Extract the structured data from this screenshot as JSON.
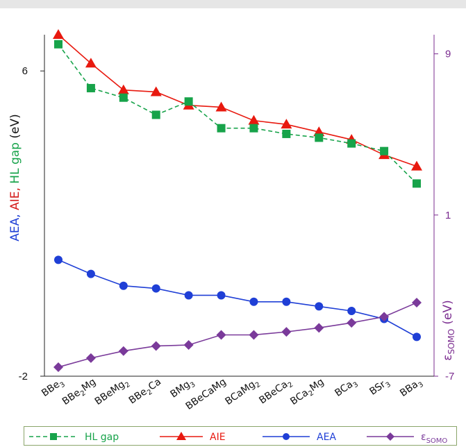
{
  "chart_data": {
    "type": "line",
    "categories": [
      "BBe3",
      "BBe2Mg",
      "BBeMg2",
      "BBe2Ca",
      "BMg3",
      "BBeCaMg",
      "BCaMg2",
      "BBeCa2",
      "BCa2Mg",
      "BCa3",
      "BSr3",
      "BBa3"
    ],
    "category_labels": [
      {
        "base": "BBe",
        "sub": "3",
        "tail": ""
      },
      {
        "base": "BBe",
        "sub": "2",
        "tail": "Mg"
      },
      {
        "base": "BBeMg",
        "sub": "2",
        "tail": ""
      },
      {
        "base": "BBe",
        "sub": "2",
        "tail": "Ca"
      },
      {
        "base": "BMg",
        "sub": "3",
        "tail": ""
      },
      {
        "base": "BBeCaMg",
        "sub": "",
        "tail": ""
      },
      {
        "base": "BCaMg",
        "sub": "2",
        "tail": ""
      },
      {
        "base": "BBeCa",
        "sub": "2",
        "tail": ""
      },
      {
        "base": "BCa",
        "sub": "2",
        "tail": "Mg"
      },
      {
        "base": "BCa",
        "sub": "3",
        "tail": ""
      },
      {
        "base": "BSr",
        "sub": "3",
        "tail": ""
      },
      {
        "base": "BBa",
        "sub": "3",
        "tail": ""
      }
    ],
    "y_left": {
      "range": [
        -2,
        6.95
      ],
      "ticks": [
        6,
        -2
      ],
      "label_parts": [
        {
          "text": "AEA, ",
          "color": "#1f3fd6"
        },
        {
          "text": "AIE, ",
          "color": "#d41a1a"
        },
        {
          "text": "HL gap",
          "color": "#17a34a"
        },
        {
          "text": " (eV)",
          "color": "#111111"
        }
      ]
    },
    "y_right": {
      "range": [
        -7,
        9.95
      ],
      "ticks": [
        9,
        1,
        -7
      ],
      "label": {
        "symbol": "ε",
        "sub": "SOMO",
        "unit": "(eV)"
      }
    },
    "series": [
      {
        "name": "HL gap",
        "axis": "left",
        "color": "#17a34a",
        "marker": "square",
        "dashed": true,
        "values": [
          6.7,
          5.55,
          5.3,
          4.85,
          5.2,
          4.5,
          4.5,
          4.35,
          4.25,
          4.1,
          3.9,
          3.05
        ]
      },
      {
        "name": "AIE",
        "axis": "left",
        "color": "#e8190f",
        "marker": "triangle",
        "dashed": false,
        "values": [
          6.95,
          6.2,
          5.5,
          5.45,
          5.1,
          5.05,
          4.7,
          4.6,
          4.4,
          4.2,
          3.8,
          3.5
        ]
      },
      {
        "name": "AEA",
        "axis": "left",
        "color": "#1f3fd6",
        "marker": "circle",
        "dashed": false,
        "values": [
          1.05,
          0.68,
          0.37,
          0.3,
          0.12,
          0.12,
          -0.05,
          -0.05,
          -0.17,
          -0.29,
          -0.5,
          -0.97
        ]
      },
      {
        "name": "SOMO",
        "legend_symbol": "ε",
        "legend_sub": "SOMO",
        "axis": "right",
        "color": "#7a3a9a",
        "marker": "diamond",
        "dashed": false,
        "values": [
          -6.55,
          -6.1,
          -5.75,
          -5.5,
          -5.45,
          -4.95,
          -4.95,
          -4.8,
          -4.6,
          -4.35,
          -4.05,
          -3.35
        ]
      }
    ],
    "grid": false,
    "legend_position": "bottom"
  }
}
